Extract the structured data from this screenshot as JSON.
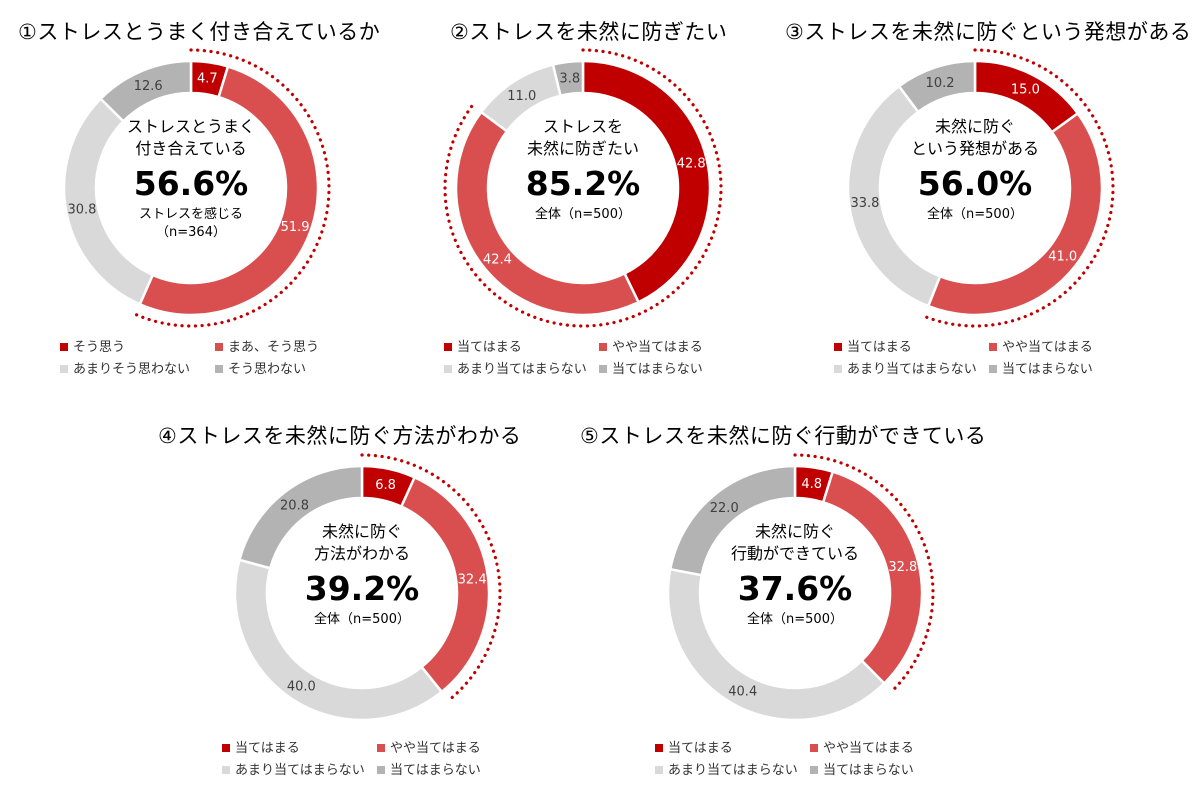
{
  "colors": {
    "c1": "#c00000",
    "c2": "#d94f4f",
    "c3": "#d9d9d9",
    "c4": "#b3b3b3",
    "dots": "#c00000"
  },
  "chart_data": [
    {
      "type": "pie",
      "title": "①ストレスとうまく付き合えているか",
      "center_label": [
        "ストレスとうまく",
        "付き合えている"
      ],
      "center_value": "56.6%",
      "center_base": [
        "ストレスを感じる",
        "（n=364）"
      ],
      "categories": [
        "そう思う",
        "まあ、そう思う",
        "あまりそう思わない",
        "そう思わない"
      ],
      "values": [
        4.7,
        51.9,
        30.8,
        12.6
      ]
    },
    {
      "type": "pie",
      "title": "②ストレスを未然に防ぎたい",
      "center_label": [
        "ストレスを",
        "未然に防ぎたい"
      ],
      "center_value": "85.2%",
      "center_base": [
        "全体（n=500）"
      ],
      "categories": [
        "当てはまる",
        "やや当てはまる",
        "あまり当てはまらない",
        "当てはまらない"
      ],
      "values": [
        42.8,
        42.4,
        11.0,
        3.8
      ]
    },
    {
      "type": "pie",
      "title": "③ストレスを未然に防ぐという発想がある",
      "center_label": [
        "未然に防ぐ",
        "という発想がある"
      ],
      "center_value": "56.0%",
      "center_base": [
        "全体（n=500）"
      ],
      "categories": [
        "当てはまる",
        "やや当てはまる",
        "あまり当てはまらない",
        "当てはまらない"
      ],
      "values": [
        15.0,
        41.0,
        33.8,
        10.2
      ]
    },
    {
      "type": "pie",
      "title": "④ストレスを未然に防ぐ方法がわかる",
      "center_label": [
        "未然に防ぐ",
        "方法がわかる"
      ],
      "center_value": "39.2%",
      "center_base": [
        "全体（n=500）"
      ],
      "categories": [
        "当てはまる",
        "やや当てはまる",
        "あまり当てはまらない",
        "当てはまらない"
      ],
      "values": [
        6.8,
        32.4,
        40.0,
        20.8
      ]
    },
    {
      "type": "pie",
      "title": "⑤ストレスを未然に防ぐ行動ができている",
      "center_label": [
        "未然に防ぐ",
        "行動ができている"
      ],
      "center_value": "37.6%",
      "center_base": [
        "全体（n=500）"
      ],
      "categories": [
        "当てはまる",
        "やや当てはまる",
        "あまり当てはまらない",
        "当てはまらない"
      ],
      "values": [
        4.8,
        32.8,
        40.4,
        22.0
      ]
    }
  ]
}
